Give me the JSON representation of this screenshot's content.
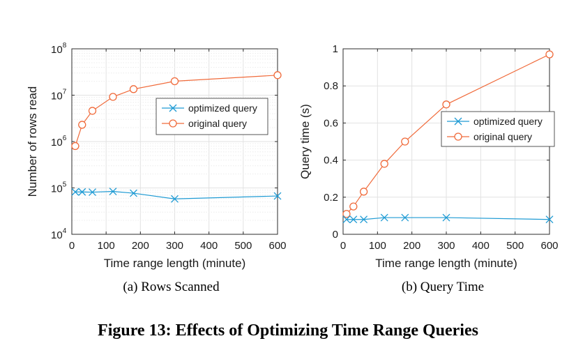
{
  "figure_caption": "Figure 13: Effects of Optimizing Time Range Queries",
  "colors": {
    "optimized": "#1f9bd4",
    "original": "#f06a3a"
  },
  "chart_data": [
    {
      "type": "line",
      "subcaption": "(a)  Rows Scanned",
      "xlabel": "Time range length (minute)",
      "ylabel": "Number of rows read",
      "xlim": [
        0,
        600
      ],
      "ylim": [
        10000,
        100000000
      ],
      "yscale": "log",
      "xticks": [
        0,
        100,
        200,
        300,
        400,
        500,
        600
      ],
      "yticks": [
        {
          "base": "10",
          "exp": "4"
        },
        {
          "base": "10",
          "exp": "5"
        },
        {
          "base": "10",
          "exp": "6"
        },
        {
          "base": "10",
          "exp": "7"
        },
        {
          "base": "10",
          "exp": "8"
        }
      ],
      "grid": true,
      "legend_position": "top-right",
      "series": [
        {
          "name": "optimized query",
          "marker": "x",
          "x": [
            10,
            30,
            60,
            120,
            180,
            300,
            600
          ],
          "y": [
            82000,
            82000,
            81000,
            84000,
            77000,
            58000,
            67000
          ]
        },
        {
          "name": "original query",
          "marker": "o",
          "x": [
            10,
            30,
            60,
            120,
            180,
            300,
            600
          ],
          "y": [
            800000,
            2300000,
            4600000,
            9200000,
            13500000,
            20000000,
            27000000
          ]
        }
      ]
    },
    {
      "type": "line",
      "subcaption": "(b)  Query Time",
      "xlabel": "Time range length (minute)",
      "ylabel": "Query time (s)",
      "xlim": [
        0,
        600
      ],
      "ylim": [
        0,
        1
      ],
      "yscale": "linear",
      "xticks": [
        0,
        100,
        200,
        300,
        400,
        500,
        600
      ],
      "yticks": [
        "0",
        "0.2",
        "0.4",
        "0.6",
        "0.8",
        "1"
      ],
      "grid": true,
      "legend_position": "center-right",
      "series": [
        {
          "name": "optimized query",
          "marker": "x",
          "x": [
            10,
            30,
            60,
            120,
            180,
            300,
            600
          ],
          "y": [
            0.08,
            0.08,
            0.08,
            0.09,
            0.09,
            0.09,
            0.08
          ]
        },
        {
          "name": "original query",
          "marker": "o",
          "x": [
            10,
            30,
            60,
            120,
            180,
            300,
            600
          ],
          "y": [
            0.11,
            0.15,
            0.23,
            0.38,
            0.5,
            0.7,
            0.97
          ]
        }
      ]
    }
  ]
}
